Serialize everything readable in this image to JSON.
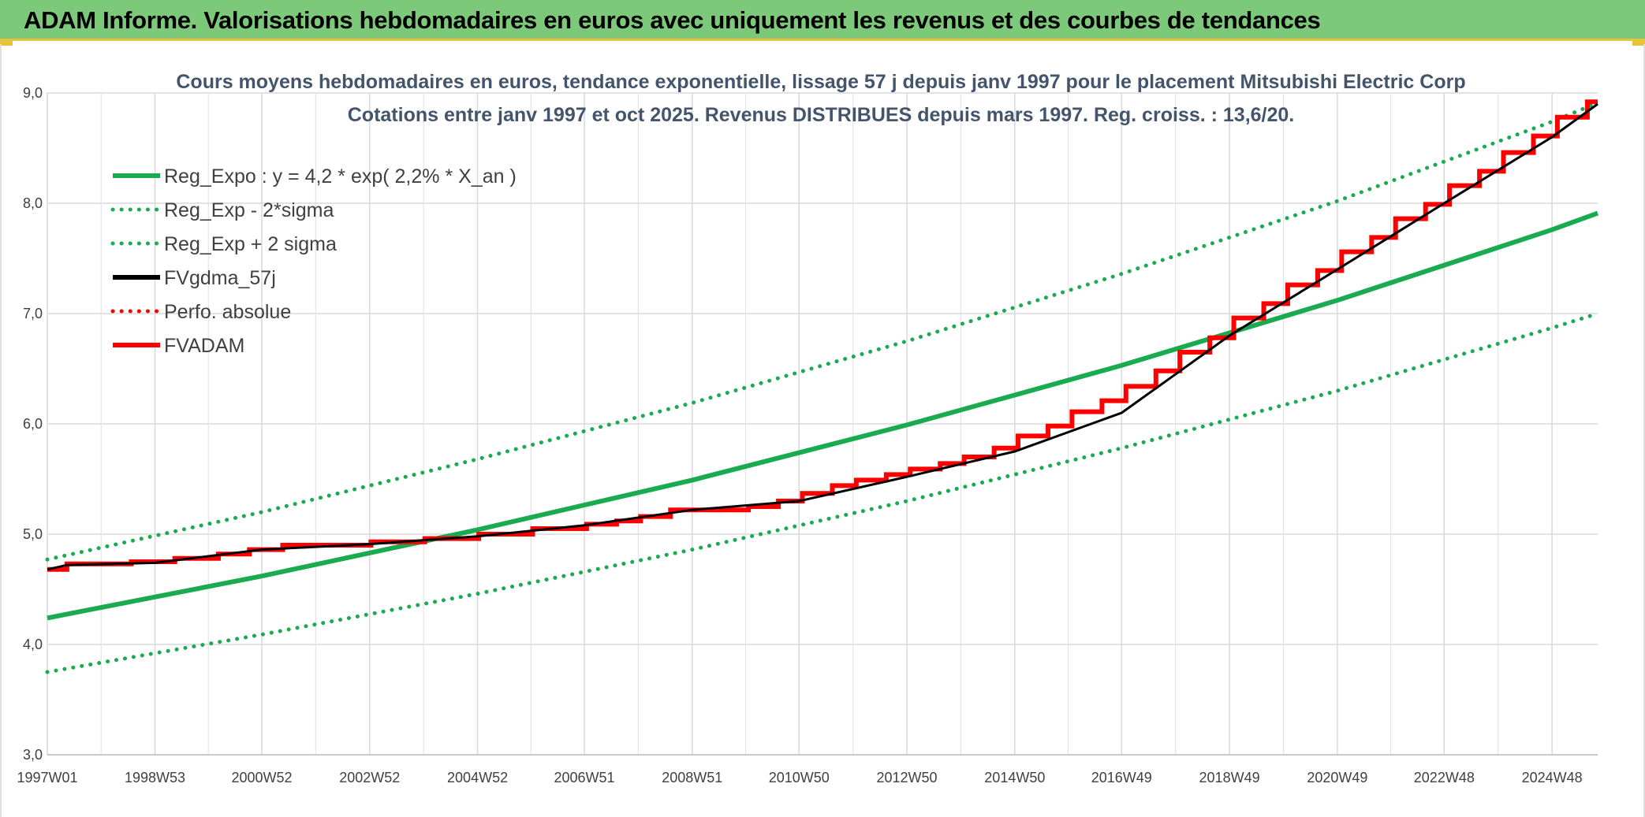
{
  "banner": {
    "title": "ADAM Informe. Valorisations hebdomadaires en euros avec uniquement les revenus et des courbes de tendances"
  },
  "colors": {
    "banner_bg": "#7dc97a",
    "banner_border": "#e8c23a",
    "trend_green": "#1aaa50",
    "fv_black": "#000000",
    "adam_red": "#ff0000"
  },
  "chart_data": {
    "type": "line",
    "title": "Cours moyens hebdomadaires en euros, tendance exponentielle, lissage 57 j depuis janv 1997 pour le placement Mitsubishi Electric Corp",
    "subtitle": "Cotations entre janv 1997 et oct 2025. Revenus DISTRIBUES depuis mars 1997. Reg. croiss. : 13,6/20.",
    "xlabel": "",
    "ylabel": "",
    "ylim": [
      3.0,
      9.0
    ],
    "y_ticks": [
      "3,0",
      "4,0",
      "5,0",
      "6,0",
      "7,0",
      "8,0",
      "9,0"
    ],
    "x_ticks": [
      "1997W01",
      "1998W53",
      "2000W52",
      "2002W52",
      "2004W52",
      "2006W51",
      "2008W51",
      "2010W50",
      "2012W50",
      "2014W50",
      "2016W49",
      "2018W49",
      "2020W49",
      "2022W48",
      "2024W48"
    ],
    "x_range": [
      "1997W01",
      "2025W40"
    ],
    "grid": true,
    "legend_position": "top-left",
    "series": [
      {
        "name": "Reg_Expo : y = 4,2 * exp( 2,2% *  X_an )",
        "style": "solid",
        "color": "#1aaa50",
        "x": [
          "1997W01",
          "2000W52",
          "2004W52",
          "2008W51",
          "2012W50",
          "2016W49",
          "2020W49",
          "2024W48",
          "2025W40"
        ],
        "values": [
          4.24,
          4.62,
          5.04,
          5.49,
          5.99,
          6.53,
          7.12,
          7.76,
          7.91
        ]
      },
      {
        "name": "Reg_Exp - 2*sigma",
        "style": "dotted",
        "color": "#1aaa50",
        "x": [
          "1997W01",
          "2000W52",
          "2004W52",
          "2008W51",
          "2012W50",
          "2016W49",
          "2020W49",
          "2024W48",
          "2025W40"
        ],
        "values": [
          3.75,
          4.09,
          4.46,
          4.86,
          5.3,
          5.78,
          6.3,
          6.87,
          7.0
        ]
      },
      {
        "name": "Reg_Exp + 2 sigma",
        "style": "dotted",
        "color": "#1aaa50",
        "x": [
          "1997W01",
          "2000W52",
          "2004W52",
          "2008W51",
          "2012W50",
          "2016W49",
          "2020W49",
          "2024W48",
          "2025W40"
        ],
        "values": [
          4.77,
          5.2,
          5.68,
          6.19,
          6.75,
          7.36,
          8.02,
          8.74,
          8.91
        ]
      },
      {
        "name": "FVgdma_57j",
        "style": "solid",
        "color": "#000000",
        "x": [
          "1997W01",
          "1997W20",
          "1999W01",
          "2000W52",
          "2002W52",
          "2004W52",
          "2006W51",
          "2008W51",
          "2010W50",
          "2012W50",
          "2014W50",
          "2016W49",
          "2018W49",
          "2020W49",
          "2022W48",
          "2024W48",
          "2025W40"
        ],
        "values": [
          4.68,
          4.72,
          4.74,
          4.86,
          4.91,
          4.98,
          5.08,
          5.22,
          5.3,
          5.52,
          5.75,
          6.1,
          6.8,
          7.4,
          8.0,
          8.6,
          8.9
        ]
      },
      {
        "name": "Perfo. absolue",
        "style": "dotted",
        "color": "#ff0000",
        "x": [],
        "values": []
      },
      {
        "name": "FVADAM",
        "style": "step",
        "color": "#ff0000",
        "x": [
          "1997W01",
          "1997W20",
          "1998W30",
          "1999W20",
          "2000W10",
          "2000W40",
          "2001W20",
          "2003W01",
          "2004W01",
          "2005W01",
          "2006W01",
          "2007W01",
          "2007W30",
          "2008W01",
          "2008W30",
          "2010W01",
          "2010W30",
          "2011W01",
          "2011W30",
          "2012W01",
          "2012W30",
          "2013W01",
          "2013W30",
          "2014W01",
          "2014W30",
          "2015W01",
          "2015W30",
          "2016W01",
          "2016W30",
          "2017W01",
          "2017W30",
          "2018W01",
          "2018W30",
          "2019W01",
          "2019W30",
          "2020W01",
          "2020W30",
          "2021W01",
          "2021W30",
          "2022W01",
          "2022W30",
          "2023W01",
          "2023W30",
          "2024W01",
          "2024W30",
          "2025W01",
          "2025W30"
        ],
        "values": [
          4.68,
          4.73,
          4.75,
          4.78,
          4.82,
          4.86,
          4.9,
          4.93,
          4.96,
          5.0,
          5.05,
          5.09,
          5.12,
          5.16,
          5.22,
          5.25,
          5.3,
          5.37,
          5.44,
          5.49,
          5.54,
          5.59,
          5.64,
          5.7,
          5.78,
          5.89,
          5.98,
          6.11,
          6.21,
          6.34,
          6.48,
          6.65,
          6.78,
          6.96,
          7.09,
          7.26,
          7.39,
          7.56,
          7.69,
          7.86,
          7.99,
          8.16,
          8.29,
          8.46,
          8.61,
          8.78,
          8.92
        ]
      }
    ]
  }
}
